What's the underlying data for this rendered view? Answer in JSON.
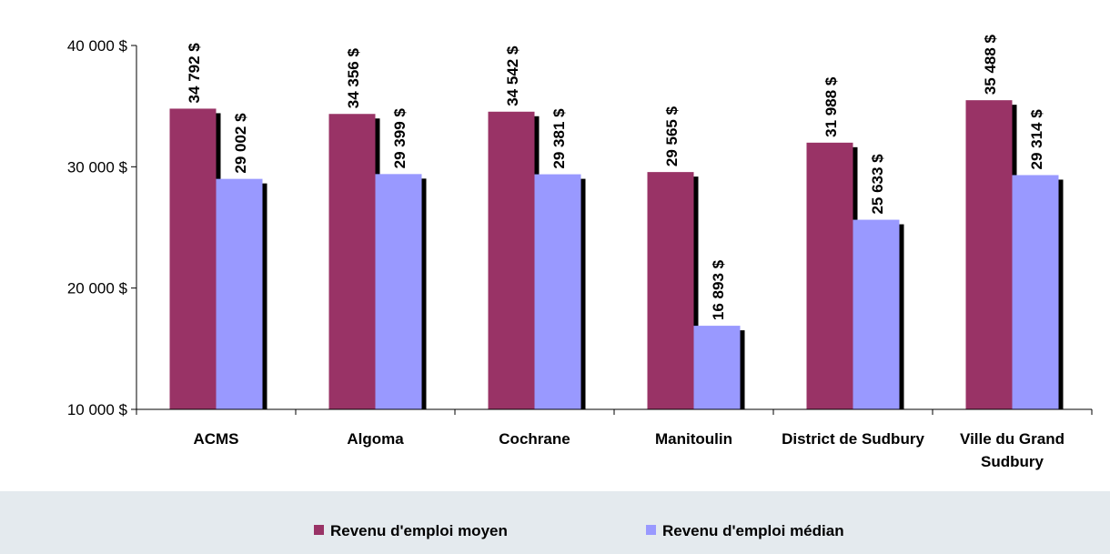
{
  "chart_data": {
    "type": "bar",
    "categories": [
      "ACMS",
      "Algoma",
      "Cochrane",
      "Manitoulin",
      "District de Sudbury",
      "Ville du Grand Sudbury"
    ],
    "series": [
      {
        "name": "Revenu d'emploi moyen",
        "color": "#993366",
        "values": [
          34792,
          34356,
          34542,
          29565,
          31988,
          35488
        ],
        "value_labels": [
          "34 792 $",
          "34 356 $",
          "34 542 $",
          "29 565 $",
          "31 988 $",
          "35 488 $"
        ]
      },
      {
        "name": "Revenu d'emploi médian",
        "color": "#9999ff",
        "values": [
          29002,
          29399,
          29381,
          16893,
          25633,
          29314
        ],
        "value_labels": [
          "29 002 $",
          "29 399 $",
          "29 381 $",
          "16 893 $",
          "25 633 $",
          "29 314 $"
        ]
      }
    ],
    "ylim": [
      10000,
      40000
    ],
    "yticks": [
      {
        "value": 10000,
        "label": "10 000 $"
      },
      {
        "value": 20000,
        "label": "20 000 $"
      },
      {
        "value": 30000,
        "label": "30 000 $"
      },
      {
        "value": 40000,
        "label": "40 000 $"
      }
    ],
    "legend": "bottom"
  }
}
